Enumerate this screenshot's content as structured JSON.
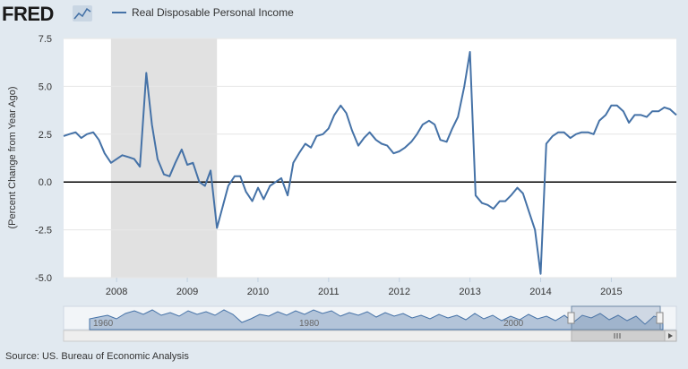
{
  "brand": {
    "logo_text": "FRED",
    "logo_icon": "fred-chart-icon"
  },
  "source": {
    "text": "Source: US. Bureau of Economic Analysis"
  },
  "colors": {
    "series": "#4572a7",
    "recession": "#e1e1e1",
    "background": "#e1e9f0",
    "plot_background": "#ffffff",
    "zero_line": "#000000",
    "grid": "#e6e6e6"
  },
  "chart_data": {
    "type": "line",
    "title": "",
    "xlabel": "",
    "ylabel": "(Percent Change from Year Ago)",
    "ylim": [
      -5.0,
      7.5
    ],
    "xlim": [
      2007.25,
      2015.92
    ],
    "y_ticks": [
      "7.5",
      "5.0",
      "2.5",
      "0.0",
      "-2.5",
      "-5.0"
    ],
    "x_ticks": [
      "2008",
      "2009",
      "2010",
      "2011",
      "2012",
      "2013",
      "2014",
      "2015"
    ],
    "legend": {
      "position": "top-left",
      "entries": [
        "Real Disposable Personal Income"
      ]
    },
    "grid": true,
    "recession_bands": [
      {
        "start": 2007.92,
        "end": 2009.42
      }
    ],
    "series": [
      {
        "name": "Real Disposable Personal Income",
        "x": [
          2007.25,
          2007.33,
          2007.42,
          2007.5,
          2007.58,
          2007.67,
          2007.75,
          2007.83,
          2007.92,
          2008.0,
          2008.08,
          2008.17,
          2008.25,
          2008.33,
          2008.42,
          2008.5,
          2008.58,
          2008.67,
          2008.75,
          2008.83,
          2008.92,
          2009.0,
          2009.08,
          2009.17,
          2009.25,
          2009.33,
          2009.42,
          2009.5,
          2009.58,
          2009.67,
          2009.75,
          2009.83,
          2009.92,
          2010.0,
          2010.08,
          2010.17,
          2010.25,
          2010.33,
          2010.42,
          2010.5,
          2010.58,
          2010.67,
          2010.75,
          2010.83,
          2010.92,
          2011.0,
          2011.08,
          2011.17,
          2011.25,
          2011.33,
          2011.42,
          2011.5,
          2011.58,
          2011.67,
          2011.75,
          2011.83,
          2011.92,
          2012.0,
          2012.08,
          2012.17,
          2012.25,
          2012.33,
          2012.42,
          2012.5,
          2012.58,
          2012.67,
          2012.75,
          2012.83,
          2012.92,
          2013.0,
          2013.08,
          2013.17,
          2013.25,
          2013.33,
          2013.42,
          2013.5,
          2013.58,
          2013.67,
          2013.75,
          2013.83,
          2013.92,
          2014.0,
          2014.08,
          2014.17,
          2014.25,
          2014.33,
          2014.42,
          2014.5,
          2014.58,
          2014.67,
          2014.75,
          2014.83,
          2014.92,
          2015.0,
          2015.08,
          2015.17,
          2015.25,
          2015.33,
          2015.42,
          2015.5,
          2015.58,
          2015.67,
          2015.75,
          2015.83,
          2015.92
        ],
        "values": [
          2.4,
          2.5,
          2.6,
          2.3,
          2.5,
          2.6,
          2.2,
          1.5,
          1.0,
          1.2,
          1.4,
          1.3,
          1.2,
          0.8,
          5.7,
          3.0,
          1.2,
          0.4,
          0.3,
          1.0,
          1.7,
          0.9,
          1.0,
          0.0,
          -0.2,
          0.6,
          -2.4,
          -1.3,
          -0.2,
          0.3,
          0.3,
          -0.5,
          -1.0,
          -0.3,
          -0.9,
          -0.2,
          0.0,
          0.2,
          -0.7,
          1.0,
          1.5,
          2.0,
          1.8,
          2.4,
          2.5,
          2.8,
          3.5,
          4.0,
          3.6,
          2.7,
          1.9,
          2.3,
          2.6,
          2.2,
          2.0,
          1.9,
          1.5,
          1.6,
          1.8,
          2.1,
          2.5,
          3.0,
          3.2,
          3.0,
          2.2,
          2.1,
          2.8,
          3.4,
          5.0,
          6.8,
          -0.7,
          -1.1,
          -1.2,
          -1.4,
          -1.0,
          -1.0,
          -0.7,
          -0.3,
          -0.6,
          -1.5,
          -2.5,
          -4.8,
          2.0,
          2.4,
          2.6,
          2.6,
          2.3,
          2.5,
          2.6,
          2.6,
          2.5,
          3.2,
          3.5,
          4.0,
          4.0,
          3.7,
          3.1,
          3.5,
          3.5,
          3.4,
          3.7,
          3.7,
          3.9,
          3.8,
          3.5
        ]
      }
    ],
    "navigator": {
      "labels": [
        "1960",
        "1980",
        "2000"
      ],
      "scroll_icon": "scroll-grip-icon"
    }
  }
}
